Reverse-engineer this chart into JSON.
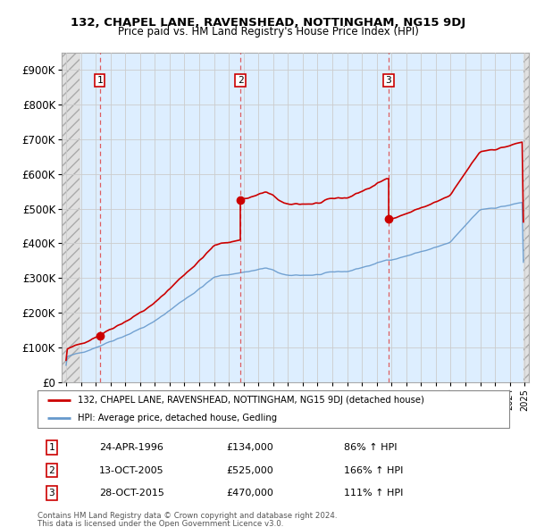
{
  "title": "132, CHAPEL LANE, RAVENSHEAD, NOTTINGHAM, NG15 9DJ",
  "subtitle": "Price paid vs. HM Land Registry's House Price Index (HPI)",
  "ylim": [
    0,
    950000
  ],
  "yticks": [
    0,
    100000,
    200000,
    300000,
    400000,
    500000,
    600000,
    700000,
    800000,
    900000
  ],
  "ytick_labels": [
    "£0",
    "£100K",
    "£200K",
    "£300K",
    "£400K",
    "£500K",
    "£600K",
    "£700K",
    "£800K",
    "£900K"
  ],
  "plot_bg_color": "#ddeeff",
  "grid_color": "#cccccc",
  "purchases": [
    {
      "date_num": 1996.29,
      "price": 134000,
      "label": "1",
      "date_str": "24-APR-1996",
      "pct": "86% ↑ HPI"
    },
    {
      "date_num": 2005.78,
      "price": 525000,
      "label": "2",
      "date_str": "13-OCT-2005",
      "pct": "166% ↑ HPI"
    },
    {
      "date_num": 2015.81,
      "price": 470000,
      "label": "3",
      "date_str": "28-OCT-2015",
      "pct": "111% ↑ HPI"
    }
  ],
  "hpi_line_color": "#6699cc",
  "price_line_color": "#cc0000",
  "vline_color": "#dd4444",
  "legend_label_price": "132, CHAPEL LANE, RAVENSHEAD, NOTTINGHAM, NG15 9DJ (detached house)",
  "legend_label_hpi": "HPI: Average price, detached house, Gedling",
  "footer1": "Contains HM Land Registry data © Crown copyright and database right 2024.",
  "footer2": "This data is licensed under the Open Government Licence v3.0.",
  "xmin": 1993.7,
  "xmax": 2025.3,
  "hatch_end": 1994.9,
  "hatch_start_right": 2024.9
}
